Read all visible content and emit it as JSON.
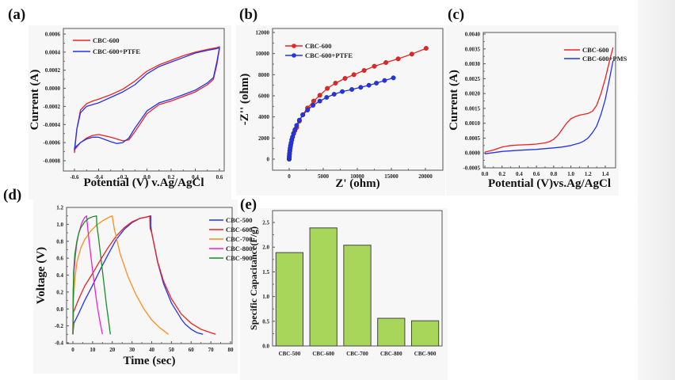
{
  "figure": {
    "background_strip_color": "#eeeeee"
  },
  "chart_data": [
    {
      "id": "a",
      "panel_label": "(a)",
      "type": "line",
      "title": "",
      "xlabel": "Potential (V) v.Ag/AgCl",
      "ylabel": "Current (A)",
      "xlim": [
        -0.6,
        0.6
      ],
      "ylim": [
        -0.0008,
        0.0006
      ],
      "xticks": [
        "-0.6",
        "-0.4",
        "-0.2",
        "0.0",
        "0.2",
        "0.4",
        "0.6"
      ],
      "xtick_values": [
        -0.6,
        -0.4,
        -0.2,
        0.0,
        0.2,
        0.4,
        0.6
      ],
      "yticks": [
        "0.0006",
        "0.0004",
        "0.0002",
        "0.0000",
        "-0.0002",
        "-0.0004",
        "-0.0006",
        "-0.0008"
      ],
      "ytick_values": [
        0.0006,
        0.0004,
        0.0002,
        0.0,
        -0.0002,
        -0.0004,
        -0.0006,
        -0.0008
      ],
      "legend_position": "top-left",
      "series": [
        {
          "name": "CBC-600",
          "color": "#ee2222",
          "closed": true,
          "x": [
            -0.6,
            -0.58,
            -0.55,
            -0.5,
            -0.45,
            -0.4,
            -0.3,
            -0.2,
            -0.1,
            0.0,
            0.1,
            0.2,
            0.3,
            0.4,
            0.5,
            0.58,
            0.6,
            0.6,
            0.58,
            0.55,
            0.5,
            0.4,
            0.3,
            0.2,
            0.1,
            0.0,
            -0.1,
            -0.15,
            -0.2,
            -0.3,
            -0.4,
            -0.45,
            -0.5,
            -0.55,
            -0.6
          ],
          "y": [
            -0.00071,
            -0.00045,
            -0.00024,
            -0.00017,
            -0.00014,
            -0.00012,
            -7e-05,
            -1e-05,
            8e-05,
            0.00019,
            0.00026,
            0.00031,
            0.00036,
            0.0004,
            0.00043,
            0.00045,
            0.00046,
            0.00044,
            0.00027,
            0.0001,
            4e-05,
            -4e-05,
            -9e-05,
            -0.00014,
            -0.00018,
            -0.00028,
            -0.00048,
            -0.00057,
            -0.00058,
            -0.00054,
            -0.00051,
            -0.00052,
            -0.00055,
            -0.0006,
            -0.00068
          ]
        },
        {
          "name": "CBC-600+PTFE",
          "color": "#2233ee",
          "closed": true,
          "x": [
            -0.6,
            -0.58,
            -0.55,
            -0.5,
            -0.45,
            -0.4,
            -0.3,
            -0.2,
            -0.1,
            0.0,
            0.1,
            0.2,
            0.3,
            0.4,
            0.5,
            0.58,
            0.6,
            0.6,
            0.58,
            0.55,
            0.5,
            0.4,
            0.3,
            0.2,
            0.1,
            0.0,
            -0.1,
            -0.15,
            -0.2,
            -0.25,
            -0.3,
            -0.4,
            -0.45,
            -0.5,
            -0.55,
            -0.6
          ],
          "y": [
            -0.00068,
            -0.00045,
            -0.00027,
            -0.0002,
            -0.00018,
            -0.00016,
            -0.0001,
            -4e-05,
            4e-05,
            0.00016,
            0.00024,
            0.00029,
            0.00034,
            0.00039,
            0.00042,
            0.00044,
            0.00045,
            0.00045,
            0.0003,
            0.00012,
            6e-05,
            -2e-05,
            -7e-05,
            -0.00012,
            -0.00016,
            -0.00025,
            -0.00044,
            -0.00055,
            -0.0006,
            -0.00061,
            -0.00059,
            -0.00054,
            -0.00054,
            -0.00056,
            -0.0006,
            -0.00066
          ]
        }
      ]
    },
    {
      "id": "b",
      "panel_label": "(b)",
      "type": "scatter",
      "title": "",
      "xlabel": "Z' (ohm)",
      "ylabel": "-Z'' (ohm)",
      "xlim": [
        -2500,
        22500
      ],
      "ylim": [
        -1000,
        12000
      ],
      "xticks": [
        "0",
        "5000",
        "10000",
        "15000",
        "20000"
      ],
      "xtick_values": [
        0,
        5000,
        10000,
        15000,
        20000
      ],
      "yticks": [
        "12000",
        "10000",
        "8000",
        "6000",
        "4000",
        "2000",
        "0"
      ],
      "ytick_values": [
        12000,
        10000,
        8000,
        6000,
        4000,
        2000,
        0
      ],
      "legend_position": "top-left",
      "series": [
        {
          "name": "CBC-600",
          "color": "#ee2222",
          "x": [
            0,
            20,
            50,
            90,
            140,
            200,
            280,
            380,
            500,
            650,
            850,
            1100,
            1500,
            2000,
            2700,
            3600,
            4500,
            5600,
            6800,
            8200,
            9500,
            11000,
            12500,
            14200,
            16000,
            18000,
            20100
          ],
          "y": [
            0,
            250,
            500,
            750,
            1000,
            1250,
            1500,
            1800,
            2100,
            2450,
            2700,
            3000,
            3600,
            4200,
            4850,
            5500,
            6050,
            6700,
            7200,
            7650,
            8000,
            8400,
            8800,
            9150,
            9500,
            9950,
            10500
          ]
        },
        {
          "name": "CBC-600+PTFE",
          "color": "#2233ee",
          "x": [
            0,
            10,
            30,
            60,
            100,
            150,
            210,
            290,
            380,
            500,
            650,
            850,
            1100,
            1500,
            2000,
            2700,
            3500,
            4500,
            5500,
            6600,
            7800,
            9200,
            10500,
            11700,
            12800,
            14000,
            15300
          ],
          "y": [
            0,
            150,
            350,
            550,
            800,
            1050,
            1300,
            1550,
            1850,
            2100,
            2400,
            2800,
            3200,
            3700,
            4200,
            4650,
            5100,
            5500,
            5850,
            6150,
            6400,
            6600,
            6800,
            7000,
            7200,
            7450,
            7700
          ]
        }
      ]
    },
    {
      "id": "c",
      "panel_label": "(c)",
      "type": "line",
      "title": "",
      "xlabel": "Potential (V)vs.Ag/AgCl",
      "ylabel": "Current (A)",
      "xlim": [
        0.0,
        1.5
      ],
      "ylim": [
        -0.0005,
        0.004
      ],
      "xticks": [
        "0.0",
        "0.2",
        "0.4",
        "0.6",
        "0.8",
        "1.0",
        "1.2",
        "1.4"
      ],
      "xtick_values": [
        0.0,
        0.2,
        0.4,
        0.6,
        0.8,
        1.0,
        1.2,
        1.4
      ],
      "yticks": [
        "0.0040",
        "0.0035",
        "0.0030",
        "0.0025",
        "0.0020",
        "0.0015",
        "0.0010",
        "0.0005",
        "0.0000",
        "-0.0005"
      ],
      "ytick_values": [
        0.004,
        0.0035,
        0.003,
        0.0025,
        0.002,
        0.0015,
        0.001,
        0.0005,
        0.0,
        -0.0005
      ],
      "legend_position": "top-right",
      "series": [
        {
          "name": "CBC-600",
          "color": "#ee2222",
          "x": [
            0.0,
            0.1,
            0.2,
            0.3,
            0.4,
            0.5,
            0.6,
            0.7,
            0.75,
            0.8,
            0.85,
            0.9,
            0.95,
            1.0,
            1.05,
            1.1,
            1.15,
            1.2,
            1.25,
            1.3,
            1.35,
            1.4,
            1.45,
            1.49
          ],
          "y": [
            3e-05,
            0.0001,
            0.0002,
            0.00025,
            0.00027,
            0.00028,
            0.0003,
            0.00034,
            0.00038,
            0.00046,
            0.0006,
            0.0008,
            0.001,
            0.00115,
            0.00122,
            0.00127,
            0.0013,
            0.00133,
            0.0014,
            0.0016,
            0.002,
            0.0025,
            0.0031,
            0.00355
          ]
        },
        {
          "name": "CBC-600+PMS",
          "color": "#2233ee",
          "x": [
            0.0,
            0.2,
            0.4,
            0.6,
            0.8,
            0.9,
            1.0,
            1.1,
            1.15,
            1.2,
            1.25,
            1.3,
            1.35,
            1.4,
            1.45,
            1.49
          ],
          "y": [
            -3e-05,
            5e-05,
            9e-05,
            0.00012,
            0.00017,
            0.0002,
            0.00025,
            0.00033,
            0.0004,
            0.0005,
            0.00068,
            0.0009,
            0.0013,
            0.0018,
            0.0025,
            0.0031
          ]
        }
      ]
    },
    {
      "id": "d",
      "panel_label": "(d)",
      "type": "line",
      "title": "",
      "xlabel": "Time (sec)",
      "ylabel": "Voltage (V)",
      "xlim": [
        -4,
        81
      ],
      "ylim": [
        -0.4,
        1.2
      ],
      "xticks": [
        "0",
        "10",
        "20",
        "30",
        "40",
        "50",
        "60",
        "70",
        "80"
      ],
      "xtick_values": [
        0,
        10,
        20,
        30,
        40,
        50,
        60,
        70,
        80
      ],
      "yticks": [
        "1.2",
        "1.0",
        "0.8",
        "0.6",
        "0.4",
        "0.2",
        "0.0",
        "-0.2",
        "-0.4"
      ],
      "ytick_values": [
        1.2,
        1.0,
        0.8,
        0.6,
        0.4,
        0.2,
        0.0,
        -0.2,
        -0.4
      ],
      "legend_position": "top-right",
      "series": [
        {
          "name": "CBC-500",
          "color": "#2233ee",
          "x": [
            0,
            0.5,
            3,
            6,
            10,
            14,
            18,
            22,
            26,
            30,
            34,
            38,
            39.5,
            39.5,
            40,
            43,
            46,
            50,
            54,
            55,
            57,
            60,
            63,
            66
          ],
          "y": [
            -0.3,
            -0.17,
            -0.05,
            0.1,
            0.28,
            0.47,
            0.65,
            0.82,
            0.94,
            1.02,
            1.07,
            1.09,
            1.1,
            0.98,
            0.9,
            0.55,
            0.3,
            0.07,
            -0.08,
            -0.12,
            -0.18,
            -0.24,
            -0.28,
            -0.3
          ]
        },
        {
          "name": "CBC-600",
          "color": "#ee2222",
          "x": [
            0,
            0.3,
            3,
            6,
            10,
            14,
            18,
            22,
            26,
            30,
            34,
            38,
            39,
            39.2,
            40,
            43,
            46,
            50,
            55,
            60,
            65,
            70,
            72.5
          ],
          "y": [
            -0.3,
            -0.04,
            0.12,
            0.27,
            0.42,
            0.58,
            0.73,
            0.86,
            0.96,
            1.03,
            1.07,
            1.09,
            1.1,
            0.95,
            0.9,
            0.56,
            0.33,
            0.12,
            -0.06,
            -0.17,
            -0.24,
            -0.28,
            -0.3
          ]
        },
        {
          "name": "CBC-700",
          "color": "#ff8c1a",
          "x": [
            0,
            0.3,
            1,
            2,
            4,
            6,
            9,
            12,
            15,
            18,
            20,
            20.1,
            21,
            24,
            28,
            32,
            36,
            40,
            44,
            48.5
          ],
          "y": [
            -0.3,
            0.1,
            0.35,
            0.55,
            0.72,
            0.82,
            0.92,
            0.99,
            1.04,
            1.08,
            1.1,
            1.08,
            0.95,
            0.65,
            0.38,
            0.17,
            0.0,
            -0.13,
            -0.22,
            -0.3
          ]
        },
        {
          "name": "CBC-800",
          "color": "#ee22cc",
          "x": [
            0,
            0.2,
            0.6,
            1.2,
            2,
            3,
            4,
            5,
            6,
            7,
            7.1,
            8,
            9,
            10,
            11,
            12,
            13,
            14,
            15
          ],
          "y": [
            -0.3,
            0.25,
            0.45,
            0.62,
            0.78,
            0.9,
            0.98,
            1.04,
            1.08,
            1.1,
            1.05,
            0.85,
            0.65,
            0.45,
            0.27,
            0.1,
            -0.05,
            -0.18,
            -0.3
          ]
        },
        {
          "name": "CBC-900",
          "color": "#1a8c2a",
          "x": [
            0,
            0.15,
            0.4,
            1,
            2,
            3,
            4,
            6,
            8,
            10,
            12,
            12.1,
            13,
            14,
            15,
            16,
            17,
            18,
            19
          ],
          "y": [
            -0.3,
            0.2,
            0.45,
            0.65,
            0.8,
            0.9,
            0.96,
            1.03,
            1.07,
            1.09,
            1.1,
            1.0,
            0.85,
            0.65,
            0.45,
            0.25,
            0.05,
            -0.12,
            -0.3
          ]
        }
      ]
    },
    {
      "id": "e",
      "panel_label": "(e)",
      "type": "bar",
      "title": "",
      "xlabel": "",
      "ylabel": "Specific Capacitance(F/g)",
      "categories": [
        "CBC-500",
        "CBC-600",
        "CBC-700",
        "CBC-800",
        "CBC-900"
      ],
      "values": [
        1.89,
        2.39,
        2.04,
        0.56,
        0.51
      ],
      "ylim": [
        0.0,
        2.75
      ],
      "yticks": [
        "2.5",
        "2.0",
        "1.5",
        "1.0",
        "0.5",
        "0.0"
      ],
      "ytick_values": [
        2.5,
        2.0,
        1.5,
        1.0,
        0.5,
        0.0
      ],
      "bar_color": "#a8d65a",
      "bar_edge_color": "#444444"
    }
  ]
}
